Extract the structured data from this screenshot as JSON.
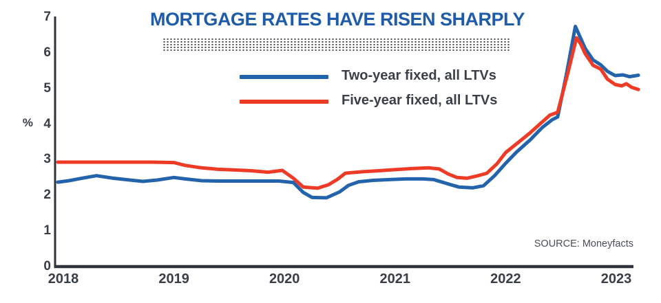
{
  "title": "MORTGAGE RATES HAVE RISEN SHARPLY",
  "source": "SOURCE: Moneyfacts",
  "colors": {
    "title_blue": "#1e5caa",
    "axis": "#2f333b",
    "tick_text": "#383d46",
    "legend_text": "#3b4048",
    "source_text": "#4a4e57",
    "dotted_rule": "#474747",
    "two_year_line": "#2363ac",
    "five_year_line": "#ee3b26"
  },
  "chart_data": {
    "type": "line",
    "title": "MORTGAGE RATES HAVE RISEN SHARPLY",
    "xlabel": "",
    "ylabel": "%",
    "ylim": [
      0,
      7
    ],
    "yticks": [
      0,
      1,
      2,
      3,
      4,
      5,
      6,
      7
    ],
    "xticks": [
      2018,
      2019,
      2020,
      2021,
      2022,
      2023
    ],
    "grid": false,
    "legend_position": "top-center",
    "series": [
      {
        "key": "two-year-fixed",
        "name": "Two-year fixed, all LTVs",
        "color": "#2363ac",
        "x": [
          2017.95,
          2018.05,
          2018.15,
          2018.3,
          2018.45,
          2018.6,
          2018.72,
          2018.85,
          2019.0,
          2019.1,
          2019.25,
          2019.4,
          2019.6,
          2019.8,
          2019.95,
          2020.08,
          2020.17,
          2020.25,
          2020.38,
          2020.5,
          2020.58,
          2020.67,
          2020.8,
          2020.95,
          2021.1,
          2021.25,
          2021.35,
          2021.5,
          2021.58,
          2021.7,
          2021.8,
          2021.9,
          2022.0,
          2022.1,
          2022.22,
          2022.33,
          2022.42,
          2022.47,
          2022.55,
          2022.63,
          2022.72,
          2022.79,
          2022.86,
          2022.92,
          2022.99,
          2023.06,
          2023.12,
          2023.2
        ],
        "y": [
          2.37,
          2.41,
          2.47,
          2.55,
          2.48,
          2.43,
          2.39,
          2.43,
          2.5,
          2.46,
          2.41,
          2.4,
          2.4,
          2.4,
          2.4,
          2.36,
          2.08,
          1.94,
          1.93,
          2.1,
          2.28,
          2.38,
          2.42,
          2.44,
          2.46,
          2.46,
          2.44,
          2.3,
          2.23,
          2.21,
          2.27,
          2.55,
          2.9,
          3.22,
          3.55,
          3.9,
          4.12,
          4.2,
          5.4,
          6.74,
          6.12,
          5.8,
          5.66,
          5.48,
          5.36,
          5.38,
          5.33,
          5.37
        ]
      },
      {
        "key": "five-year-fixed",
        "name": "Five-year fixed, all LTVs",
        "color": "#ee3b26",
        "x": [
          2017.95,
          2018.2,
          2018.5,
          2018.8,
          2019.0,
          2019.1,
          2019.25,
          2019.4,
          2019.55,
          2019.7,
          2019.85,
          2019.98,
          2020.08,
          2020.17,
          2020.3,
          2020.4,
          2020.48,
          2020.55,
          2020.7,
          2020.85,
          2021.0,
          2021.15,
          2021.3,
          2021.4,
          2021.48,
          2021.56,
          2021.65,
          2021.75,
          2021.83,
          2021.92,
          2022.0,
          2022.12,
          2022.22,
          2022.32,
          2022.4,
          2022.47,
          2022.56,
          2022.64,
          2022.68,
          2022.72,
          2022.79,
          2022.86,
          2022.92,
          2022.99,
          2023.05,
          2023.09,
          2023.14,
          2023.2
        ],
        "y": [
          2.93,
          2.93,
          2.93,
          2.93,
          2.92,
          2.84,
          2.77,
          2.73,
          2.71,
          2.69,
          2.65,
          2.7,
          2.48,
          2.23,
          2.2,
          2.3,
          2.45,
          2.62,
          2.66,
          2.69,
          2.72,
          2.75,
          2.77,
          2.74,
          2.6,
          2.5,
          2.48,
          2.55,
          2.62,
          2.88,
          3.2,
          3.5,
          3.75,
          4.03,
          4.25,
          4.33,
          5.4,
          6.42,
          6.24,
          5.97,
          5.65,
          5.54,
          5.26,
          5.11,
          5.07,
          5.13,
          5.03,
          4.97
        ]
      }
    ]
  }
}
